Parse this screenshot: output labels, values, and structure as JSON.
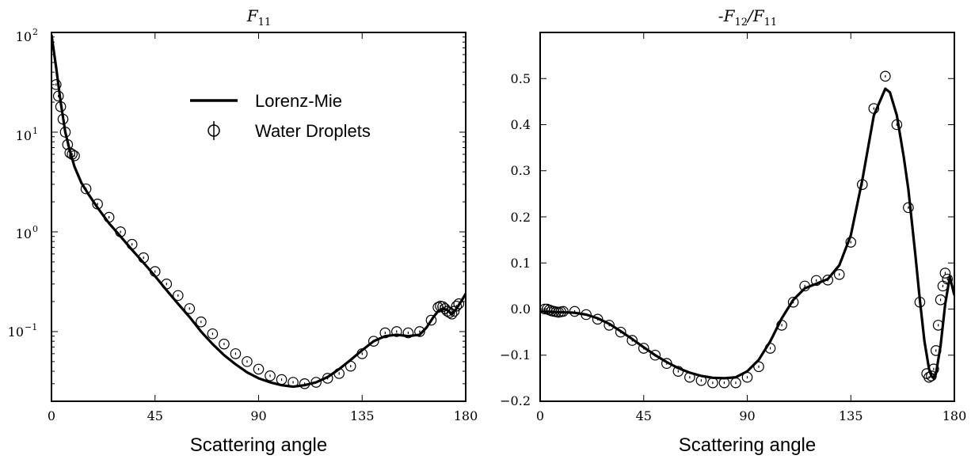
{
  "chart_data": [
    {
      "type": "line",
      "title": {
        "base": "F",
        "sub": "11"
      },
      "xlabel": "Scattering angle",
      "xlim": [
        0,
        180
      ],
      "xticks": [
        "0",
        "45",
        "90",
        "135",
        "180"
      ],
      "yscale": "log",
      "ylim": [
        0.02,
        100
      ],
      "yticks": [
        {
          "base": "10",
          "exp": "2"
        },
        {
          "base": "10",
          "exp": "1"
        },
        {
          "base": "10",
          "exp": "0"
        },
        {
          "base": "10",
          "exp": "−1"
        }
      ],
      "legend": {
        "placement": "top-right",
        "entries": [
          "Lorenz-Mie",
          "Water Droplets"
        ]
      },
      "series": [
        {
          "name": "Lorenz-Mie",
          "kind": "line",
          "x": [
            0,
            2,
            4,
            6,
            8,
            10,
            13,
            16,
            20,
            25,
            30,
            35,
            40,
            45,
            50,
            55,
            60,
            65,
            70,
            75,
            80,
            85,
            90,
            95,
            100,
            105,
            110,
            115,
            120,
            125,
            130,
            135,
            140,
            145,
            150,
            155,
            160,
            163,
            166,
            168,
            170,
            172,
            174,
            176,
            178,
            180
          ],
          "y": [
            95,
            45,
            20,
            10,
            6.5,
            4.5,
            3.1,
            2.4,
            1.75,
            1.22,
            0.9,
            0.66,
            0.49,
            0.36,
            0.26,
            0.19,
            0.14,
            0.1,
            0.075,
            0.058,
            0.047,
            0.039,
            0.034,
            0.031,
            0.029,
            0.028,
            0.029,
            0.031,
            0.035,
            0.042,
            0.052,
            0.065,
            0.08,
            0.09,
            0.093,
            0.09,
            0.093,
            0.11,
            0.14,
            0.16,
            0.17,
            0.165,
            0.15,
            0.17,
            0.2,
            0.24
          ]
        },
        {
          "name": "Water Droplets",
          "kind": "markers",
          "x": [
            2,
            3,
            4,
            5,
            6,
            7,
            8,
            9,
            10,
            15,
            20,
            25,
            30,
            35,
            40,
            45,
            50,
            55,
            60,
            65,
            70,
            75,
            80,
            85,
            90,
            95,
            100,
            105,
            110,
            115,
            120,
            125,
            130,
            135,
            140,
            145,
            150,
            155,
            160,
            165,
            168,
            169,
            170,
            171,
            172,
            173,
            174,
            175,
            176,
            177
          ],
          "y": [
            30,
            23,
            18,
            13.5,
            10,
            7.5,
            6.2,
            6.0,
            5.8,
            2.7,
            1.9,
            1.4,
            1.0,
            0.75,
            0.55,
            0.4,
            0.3,
            0.23,
            0.17,
            0.125,
            0.095,
            0.075,
            0.06,
            0.05,
            0.042,
            0.036,
            0.033,
            0.031,
            0.03,
            0.031,
            0.034,
            0.038,
            0.045,
            0.06,
            0.08,
            0.097,
            0.1,
            0.097,
            0.1,
            0.13,
            0.175,
            0.18,
            0.178,
            0.17,
            0.16,
            0.155,
            0.15,
            0.16,
            0.18,
            0.19
          ]
        }
      ]
    },
    {
      "type": "line",
      "title": {
        "pre": "-",
        "base1": "F",
        "sub1": "12",
        "slash": "/",
        "base2": "F",
        "sub2": "11"
      },
      "xlabel": "Scattering angle",
      "xlim": [
        0,
        180
      ],
      "xticks": [
        "0",
        "45",
        "90",
        "135",
        "180"
      ],
      "ylim": [
        -0.2,
        0.6
      ],
      "yticks": [
        "0.5",
        "0.4",
        "0.3",
        "0.2",
        "0.1",
        "0.0",
        "−0.1",
        "−0.2"
      ],
      "series": [
        {
          "name": "Lorenz-Mie",
          "kind": "line",
          "x": [
            0,
            5,
            10,
            15,
            20,
            25,
            30,
            35,
            40,
            45,
            50,
            55,
            60,
            65,
            70,
            75,
            80,
            85,
            90,
            95,
            100,
            105,
            110,
            115,
            120,
            125,
            130,
            135,
            140,
            145,
            150,
            152,
            155,
            158,
            160,
            163,
            165,
            167,
            169,
            170,
            171,
            172,
            174,
            176,
            178,
            180
          ],
          "y": [
            -0.005,
            -0.006,
            -0.007,
            -0.008,
            -0.012,
            -0.02,
            -0.032,
            -0.048,
            -0.065,
            -0.083,
            -0.1,
            -0.115,
            -0.128,
            -0.138,
            -0.145,
            -0.149,
            -0.15,
            -0.148,
            -0.135,
            -0.11,
            -0.07,
            -0.02,
            0.02,
            0.045,
            0.055,
            0.065,
            0.095,
            0.16,
            0.28,
            0.42,
            0.478,
            0.47,
            0.42,
            0.33,
            0.26,
            0.12,
            0.02,
            -0.07,
            -0.13,
            -0.145,
            -0.15,
            -0.14,
            -0.08,
            0.01,
            0.07,
            0.03
          ]
        },
        {
          "name": "Water Droplets",
          "kind": "markers",
          "x": [
            2,
            3,
            4,
            5,
            6,
            7,
            8,
            9,
            10,
            15,
            20,
            25,
            30,
            35,
            40,
            45,
            50,
            55,
            60,
            65,
            70,
            75,
            80,
            85,
            90,
            95,
            100,
            105,
            110,
            115,
            120,
            125,
            130,
            135,
            140,
            145,
            150,
            155,
            160,
            165,
            168,
            169,
            170,
            171,
            172,
            173,
            174,
            175,
            176,
            177
          ],
          "y": [
            0.0,
            0.0,
            -0.002,
            -0.004,
            -0.005,
            -0.006,
            -0.007,
            -0.006,
            -0.005,
            -0.005,
            -0.012,
            -0.022,
            -0.035,
            -0.05,
            -0.068,
            -0.085,
            -0.1,
            -0.118,
            -0.135,
            -0.148,
            -0.155,
            -0.16,
            -0.16,
            -0.16,
            -0.148,
            -0.125,
            -0.085,
            -0.035,
            0.015,
            0.05,
            0.062,
            0.063,
            0.075,
            0.145,
            0.27,
            0.435,
            0.505,
            0.4,
            0.22,
            0.015,
            -0.14,
            -0.148,
            -0.145,
            -0.13,
            -0.09,
            -0.035,
            0.02,
            0.05,
            0.078,
            0.065
          ]
        }
      ]
    }
  ]
}
